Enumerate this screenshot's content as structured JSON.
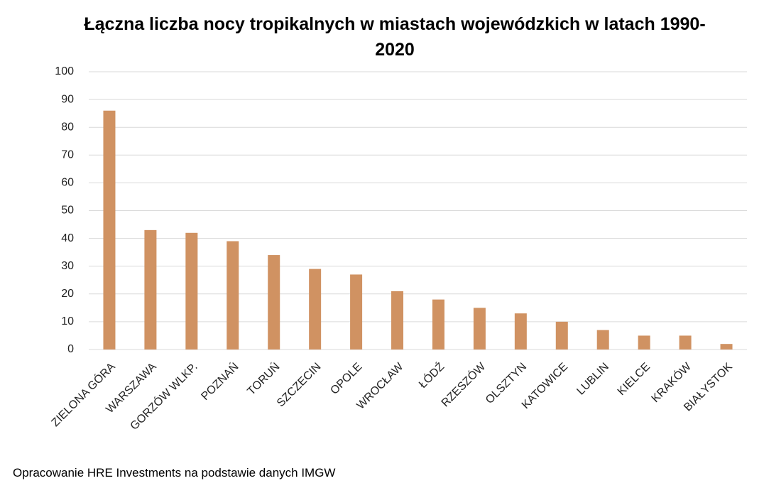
{
  "chart_data": {
    "type": "bar",
    "title": "Łączna liczba nocy tropikalnych w miastach wojewódzkich w latach 1990-2020",
    "source": "Opracowanie HRE Investments na podstawie danych IMGW",
    "categories": [
      "ZIELONA GÓRA",
      "WARSZAWA",
      "GORZÓW WLKP.",
      "POZNAŃ",
      "TORUŃ",
      "SZCZECIN",
      "OPOLE",
      "WROCŁAW",
      "ŁÓDŹ",
      "RZESZÓW",
      "OLSZTYN",
      "KATOWICE",
      "LUBLIN",
      "KIELCE",
      "KRAKÓW",
      "BIAŁYSTOK"
    ],
    "values": [
      86,
      43,
      42,
      39,
      34,
      29,
      27,
      21,
      18,
      15,
      13,
      10,
      7,
      5,
      5,
      2
    ],
    "color": "#d09262",
    "ylim": [
      0,
      100
    ],
    "yticks": [
      0,
      10,
      20,
      30,
      40,
      50,
      60,
      70,
      80,
      90,
      100
    ],
    "grid": true
  }
}
